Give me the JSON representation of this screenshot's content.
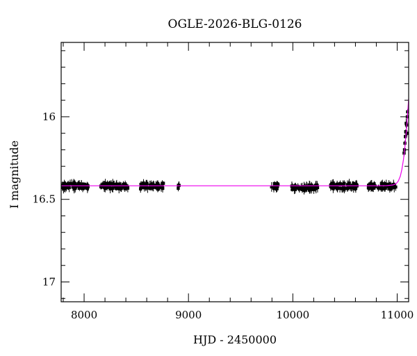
{
  "chart_data": {
    "type": "scatter",
    "title": "OGLE-2026-BLG-0126",
    "xlabel": "HJD - 2450000",
    "ylabel": "I magnitude",
    "xlim": [
      7780,
      11110
    ],
    "ylim": [
      17.12,
      15.55
    ],
    "y_inverted": true,
    "grid": false,
    "x_major_ticks": [
      8000,
      9000,
      10000,
      11000
    ],
    "x_tick_labels": [
      "8000",
      "9000",
      "10000",
      "11000"
    ],
    "y_major_ticks": [
      16.0,
      16.5,
      17.0
    ],
    "y_tick_labels": [
      "16",
      "16.5",
      "17"
    ],
    "colors": {
      "data": "#000000",
      "model": "#ee00ee",
      "axes": "#000000"
    },
    "model": {
      "name": "",
      "points": [
        [
          7780,
          16.418
        ],
        [
          10800,
          16.418
        ],
        [
          10900,
          16.417
        ],
        [
          10960,
          16.413
        ],
        [
          10990,
          16.405
        ],
        [
          11010,
          16.39
        ],
        [
          11030,
          16.36
        ],
        [
          11045,
          16.32
        ],
        [
          11060,
          16.26
        ],
        [
          11075,
          16.18
        ],
        [
          11090,
          16.07
        ],
        [
          11100,
          15.98
        ],
        [
          11110,
          15.89
        ]
      ]
    },
    "observing_seasons": [
      {
        "start": 7790,
        "end": 8040,
        "mag": 16.42,
        "count": 60
      },
      {
        "start": 8160,
        "end": 8420,
        "mag": 16.42,
        "count": 60
      },
      {
        "start": 8540,
        "end": 8760,
        "mag": 16.42,
        "count": 60
      },
      {
        "start": 8900,
        "end": 8920,
        "mag": 16.43,
        "count": 4
      },
      {
        "start": 9790,
        "end": 9860,
        "mag": 16.42,
        "count": 15
      },
      {
        "start": 9990,
        "end": 10240,
        "mag": 16.43,
        "count": 55
      },
      {
        "start": 10360,
        "end": 10620,
        "mag": 16.42,
        "count": 60
      },
      {
        "start": 10720,
        "end": 10990,
        "mag": 16.42,
        "count": 55
      }
    ],
    "rising_points": [
      [
        11066,
        16.22
      ],
      [
        11070,
        16.2
      ],
      [
        11074,
        16.16
      ],
      [
        11078,
        16.12
      ],
      [
        11082,
        16.09
      ],
      [
        11086,
        16.04
      ],
      [
        11090,
        16.05
      ],
      [
        11094,
        16.1
      ],
      [
        11097,
        16.0
      ],
      [
        11100,
        15.97
      ]
    ]
  }
}
